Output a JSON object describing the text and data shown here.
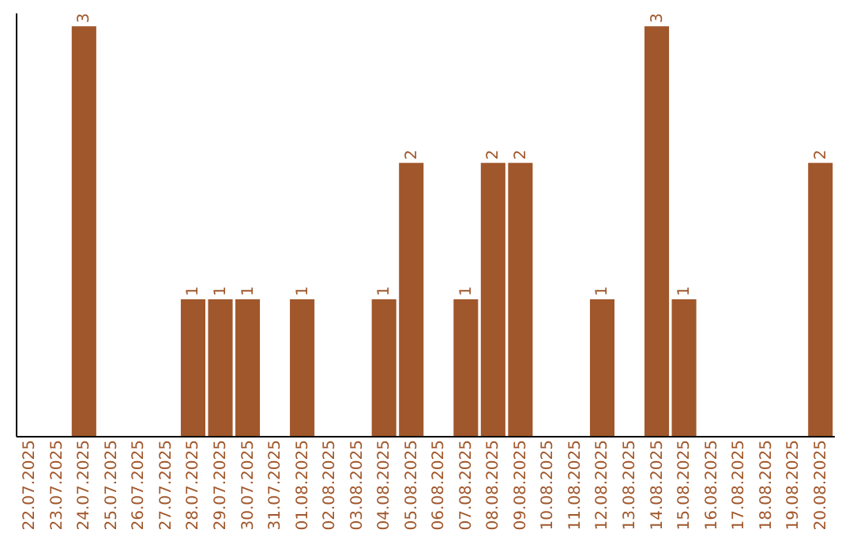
{
  "chart_data": {
    "type": "bar",
    "categories": [
      "22.07.2025",
      "23.07.2025",
      "24.07.2025",
      "25.07.2025",
      "26.07.2025",
      "27.07.2025",
      "28.07.2025",
      "29.07.2025",
      "30.07.2025",
      "31.07.2025",
      "01.08.2025",
      "02.08.2025",
      "03.08.2025",
      "04.08.2025",
      "05.08.2025",
      "06.08.2025",
      "07.08.2025",
      "08.08.2025",
      "09.08.2025",
      "10.08.2025",
      "11.08.2025",
      "12.08.2025",
      "13.08.2025",
      "14.08.2025",
      "15.08.2025",
      "16.08.2025",
      "17.08.2025",
      "18.08.2025",
      "19.08.2025",
      "20.08.2025"
    ],
    "values": [
      0,
      0,
      3,
      0,
      0,
      0,
      1,
      1,
      1,
      0,
      1,
      0,
      0,
      1,
      2,
      0,
      1,
      2,
      2,
      0,
      0,
      1,
      0,
      3,
      1,
      0,
      0,
      0,
      0,
      2
    ],
    "value_labels": [
      null,
      null,
      "3",
      null,
      null,
      null,
      "1",
      "1",
      "1",
      null,
      "1",
      null,
      null,
      "1",
      "2",
      null,
      "1",
      "2",
      "2",
      null,
      null,
      "1",
      null,
      "3",
      "1",
      null,
      null,
      null,
      null,
      "2"
    ],
    "color": "#a0572b",
    "ylim": [
      0,
      3.1
    ],
    "tick_labels": "x"
  }
}
